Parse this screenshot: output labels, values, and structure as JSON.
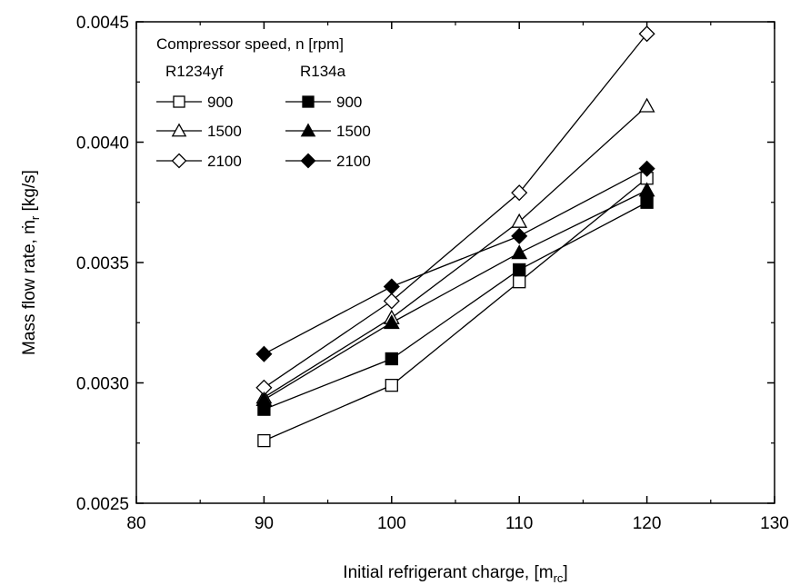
{
  "chart_data": {
    "type": "line",
    "xlabel": "Initial refrigerant charge, [m",
    "xlabel_sub": "rc",
    "xlabel_end": "]",
    "ylabel": "Mass flow rate, ṁ",
    "ylabel_sub": "r",
    "ylabel_end": " [kg/s]",
    "xlim": [
      80,
      130
    ],
    "ylim": [
      0.0025,
      0.0045
    ],
    "xticks": [
      80,
      90,
      100,
      110,
      120,
      130
    ],
    "xtick_labels": [
      "80",
      "90",
      "100",
      "110",
      "120",
      "130"
    ],
    "yticks": [
      0.0025,
      0.003,
      0.0035,
      0.004,
      0.0045
    ],
    "ytick_labels": [
      "0.0025",
      "0.0030",
      "0.0035",
      "0.0040",
      "0.0045"
    ],
    "grid": false,
    "legend": {
      "position": "top-left",
      "title": "Compressor speed, n [rpm]",
      "group_headers": [
        "R1234yf",
        "R134a"
      ]
    },
    "x": [
      90,
      100,
      110,
      120
    ],
    "series": [
      {
        "name": "900",
        "group": "R1234yf",
        "marker": "square",
        "filled": false,
        "values": [
          0.00276,
          0.00299,
          0.00342,
          0.00385
        ]
      },
      {
        "name": "1500",
        "group": "R1234yf",
        "marker": "triangle",
        "filled": false,
        "values": [
          0.00294,
          0.00327,
          0.00367,
          0.00415
        ]
      },
      {
        "name": "2100",
        "group": "R1234yf",
        "marker": "diamond",
        "filled": false,
        "values": [
          0.00298,
          0.00334,
          0.00379,
          0.00445
        ]
      },
      {
        "name": "900",
        "group": "R134a",
        "marker": "square",
        "filled": true,
        "values": [
          0.00289,
          0.0031,
          0.00347,
          0.00375
        ]
      },
      {
        "name": "1500",
        "group": "R134a",
        "marker": "triangle",
        "filled": true,
        "values": [
          0.00293,
          0.00325,
          0.00354,
          0.0038
        ]
      },
      {
        "name": "2100",
        "group": "R134a",
        "marker": "diamond",
        "filled": true,
        "values": [
          0.00312,
          0.0034,
          0.00361,
          0.00389
        ]
      }
    ]
  }
}
